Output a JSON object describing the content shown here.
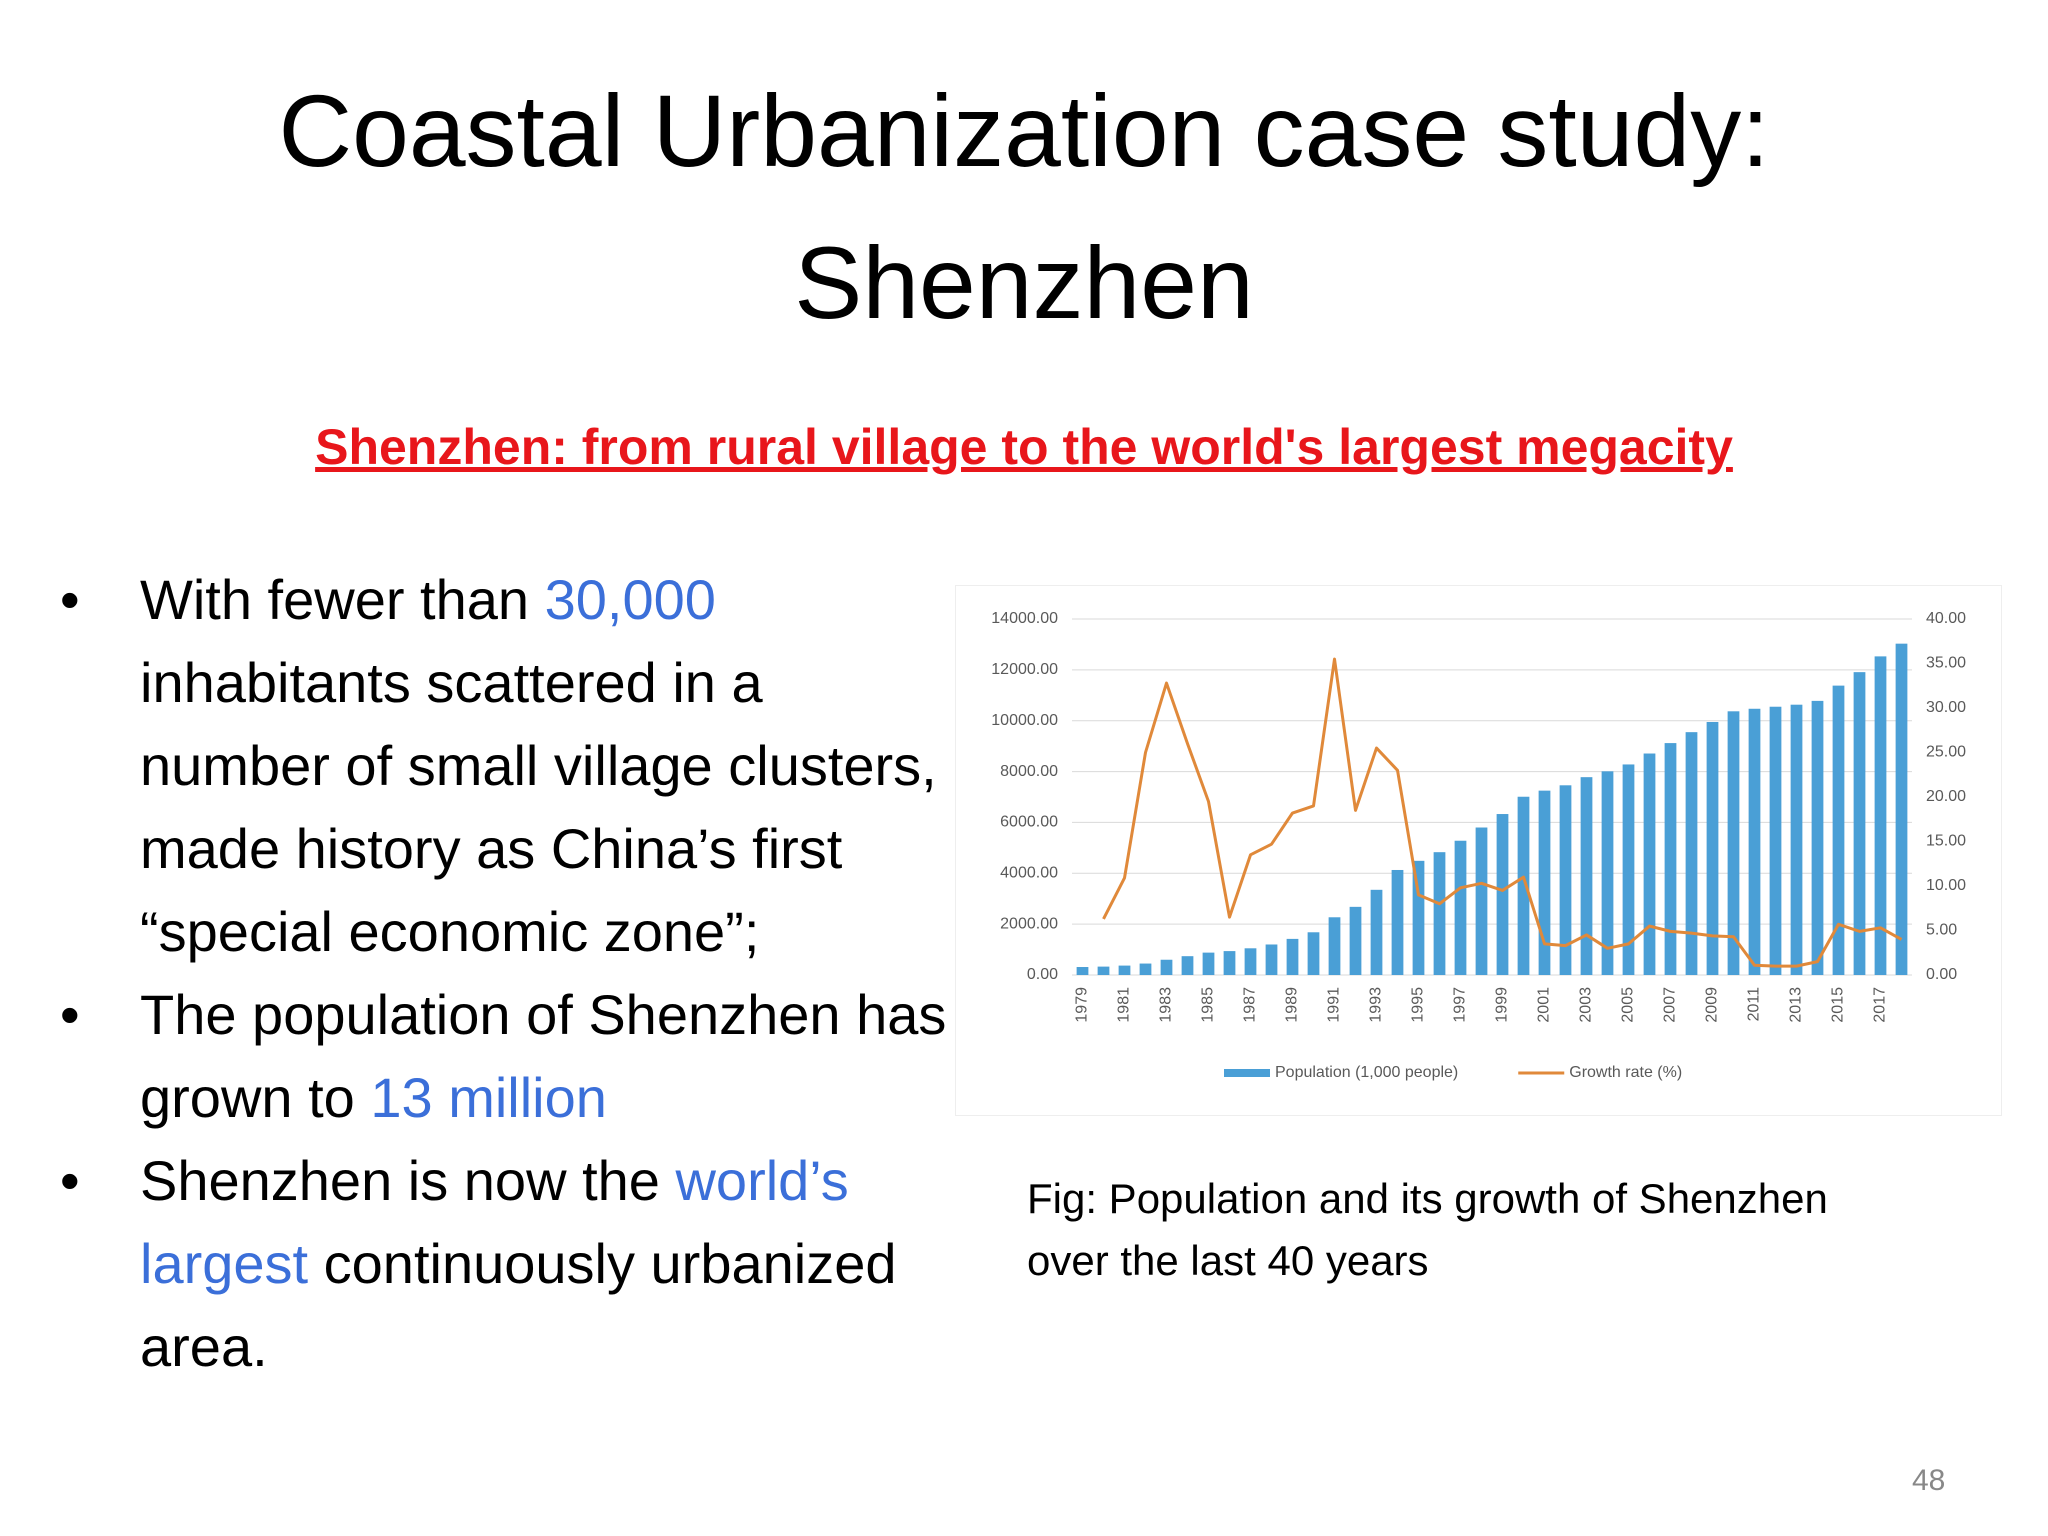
{
  "slide": {
    "title": [
      "Coastal Urbanization case study:",
      "Shenzhen"
    ],
    "subtitle": "Shenzhen: from rural village to the world's largest megacity",
    "bullets": [
      [
        {
          "text": "With fewer than "
        },
        {
          "text": "30,000",
          "color": "#3b6fd9"
        },
        {
          "text": " inhabitants scattered in a number of small village clusters, made history as China’s first “special economic zone”;"
        }
      ],
      [
        {
          "text": "The population of Shenzhen has grown to "
        },
        {
          "text": "13 million",
          "color": "#3b6fd9"
        }
      ],
      [
        {
          "text": "Shenzhen is now the "
        },
        {
          "text": "world’s largest",
          "color": "#3b6fd9"
        },
        {
          "text": " continuously urbanized area."
        }
      ]
    ],
    "caption": [
      "Fig: Population and its growth of Shenzhen",
      "over the last 40 years"
    ],
    "page_number": "48"
  },
  "chart_data": {
    "type": "bar-line",
    "categories": [
      "1979",
      null,
      "1981",
      null,
      "1983",
      null,
      "1985",
      null,
      "1987",
      null,
      "1989",
      null,
      "1991",
      null,
      "1993",
      null,
      "1995",
      null,
      "1997",
      null,
      "1999",
      null,
      "2001",
      null,
      "2003",
      null,
      "2005",
      null,
      "2007",
      null,
      "2009",
      null,
      "2011",
      null,
      "2013",
      null,
      "2015",
      null,
      "2017",
      null
    ],
    "series": [
      {
        "name": "Population (1,000 people)",
        "color": "#4a9fd6",
        "type": "bar",
        "values": [
          314,
          330,
          370,
          450,
          600,
          740,
          880,
          940,
          1050,
          1200,
          1420,
          1680,
          2270,
          2680,
          3350,
          4130,
          4490,
          4830,
          5280,
          5800,
          6330,
          7010,
          7250,
          7460,
          7780,
          8010,
          8280,
          8710,
          9120,
          9550,
          9950,
          10370,
          10470,
          10550,
          10630,
          10780,
          11380,
          11910,
          12530,
          13030
        ]
      },
      {
        "name": "Growth rate (%)",
        "color": "#e0893a",
        "type": "line",
        "axis": "y2",
        "values": [
          null,
          6.3,
          10.9,
          25,
          32.8,
          26,
          19.5,
          6.5,
          13.5,
          14.7,
          18.2,
          19,
          35.5,
          18.5,
          25.5,
          23,
          9,
          8,
          9.8,
          10.3,
          9.5,
          11,
          3.5,
          3.3,
          4.5,
          3,
          3.5,
          5.5,
          4.9,
          4.7,
          4.4,
          4.3,
          1.1,
          1,
          1,
          1.5,
          5.7,
          4.9,
          5.3,
          4
        ]
      }
    ],
    "ylim": [
      0,
      14000
    ],
    "yticks": [
      {
        "value": 0,
        "label": "0.00"
      },
      {
        "value": 2000,
        "label": "2000.00"
      },
      {
        "value": 4000,
        "label": "4000.00"
      },
      {
        "value": 6000,
        "label": "6000.00"
      },
      {
        "value": 8000,
        "label": "8000.00"
      },
      {
        "value": 10000,
        "label": "10000.00"
      },
      {
        "value": 12000,
        "label": "12000.00"
      },
      {
        "value": 14000,
        "label": "14000.00"
      }
    ],
    "y2lim": [
      0,
      40
    ],
    "y2ticks": [
      {
        "value": 0,
        "label": "0.00"
      },
      {
        "value": 5,
        "label": "5.00"
      },
      {
        "value": 10,
        "label": "10.00"
      },
      {
        "value": 15,
        "label": "15.00"
      },
      {
        "value": 20,
        "label": "20.00"
      },
      {
        "value": 25,
        "label": "25.00"
      },
      {
        "value": 30,
        "label": "30.00"
      },
      {
        "value": 35,
        "label": "35.00"
      },
      {
        "value": 40,
        "label": "40.00"
      }
    ],
    "grid": true,
    "legend": "bottom"
  }
}
